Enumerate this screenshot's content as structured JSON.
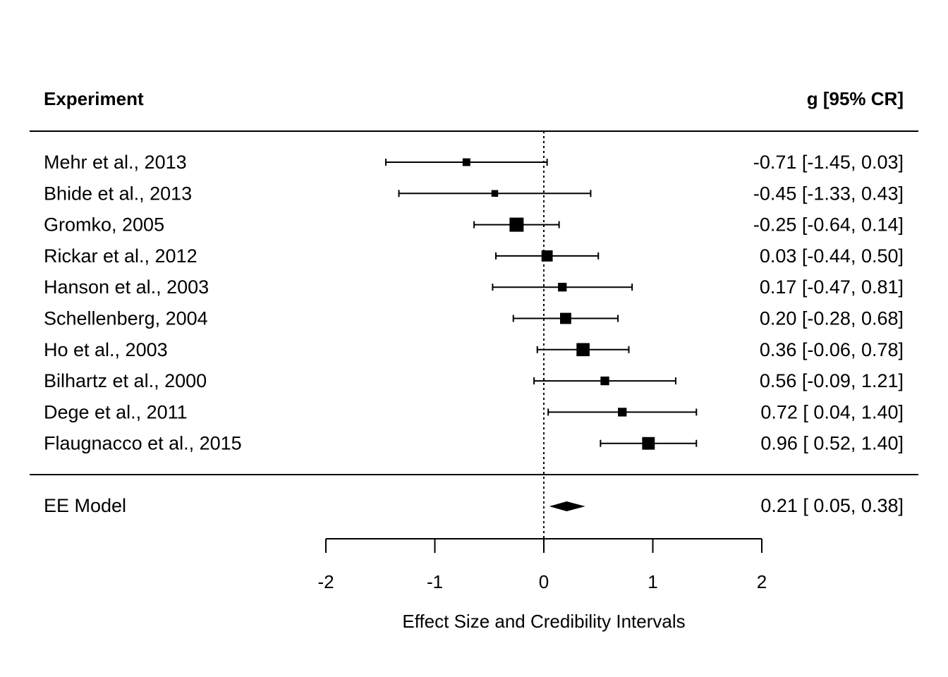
{
  "chart_data": {
    "type": "forest",
    "column_left_header": "Experiment",
    "column_right_header": "g [95% CR]",
    "xlabel": "Effect Size and Credibility Intervals",
    "xlim": [
      -2,
      2
    ],
    "xticks": [
      -2,
      -1,
      0,
      1,
      2
    ],
    "xtick_labels": [
      "-2",
      "-1",
      "0",
      "1",
      "2"
    ],
    "reference_line": 0,
    "studies": [
      {
        "name": "Mehr et al., 2013",
        "estimate": -0.71,
        "lower": -1.45,
        "upper": 0.03,
        "ci_text": "-0.71 [-1.45, 0.03]",
        "weight": 0.35
      },
      {
        "name": "Bhide et al., 2013",
        "estimate": -0.45,
        "lower": -1.33,
        "upper": 0.43,
        "ci_text": "-0.45 [-1.33, 0.43]",
        "weight": 0.25
      },
      {
        "name": "Gromko, 2005",
        "estimate": -0.25,
        "lower": -0.64,
        "upper": 0.14,
        "ci_text": "-0.25 [-0.64, 0.14]",
        "weight": 1.0
      },
      {
        "name": "Rickar et al., 2012",
        "estimate": 0.03,
        "lower": -0.44,
        "upper": 0.5,
        "ci_text": "0.03 [-0.44, 0.50]",
        "weight": 0.7
      },
      {
        "name": "Hanson et al., 2003",
        "estimate": 0.17,
        "lower": -0.47,
        "upper": 0.81,
        "ci_text": "0.17 [-0.47, 0.81]",
        "weight": 0.45
      },
      {
        "name": "Schellenberg, 2004",
        "estimate": 0.2,
        "lower": -0.28,
        "upper": 0.68,
        "ci_text": "0.20 [-0.28, 0.68]",
        "weight": 0.7
      },
      {
        "name": "Ho et al., 2003",
        "estimate": 0.36,
        "lower": -0.06,
        "upper": 0.78,
        "ci_text": "0.36 [-0.06, 0.78]",
        "weight": 0.9
      },
      {
        "name": "Bilhartz et al., 2000",
        "estimate": 0.56,
        "lower": -0.09,
        "upper": 1.21,
        "ci_text": "0.56 [-0.09, 1.21]",
        "weight": 0.45
      },
      {
        "name": "Dege et al., 2011",
        "estimate": 0.72,
        "lower": 0.04,
        "upper": 1.4,
        "ci_text": "0.72 [ 0.04, 1.40]",
        "weight": 0.45
      },
      {
        "name": "Flaugnacco et al., 2015",
        "estimate": 0.96,
        "lower": 0.52,
        "upper": 1.4,
        "ci_text": "0.96 [ 0.52, 1.40]",
        "weight": 0.85
      }
    ],
    "summary": {
      "name": "EE Model",
      "estimate": 0.21,
      "lower": 0.05,
      "upper": 0.38,
      "ci_text": "0.21 [ 0.05, 0.38]"
    }
  }
}
